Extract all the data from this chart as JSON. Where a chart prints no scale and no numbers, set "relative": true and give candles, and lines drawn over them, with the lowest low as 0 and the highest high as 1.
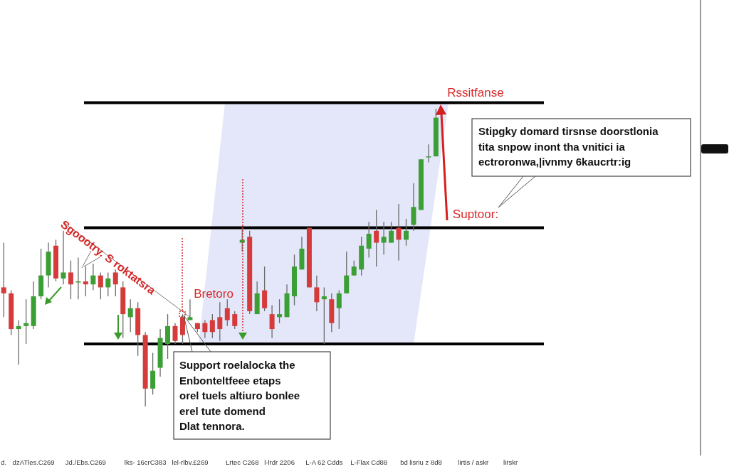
{
  "chart_data": {
    "type": "candlestick",
    "relative": true,
    "categories": [
      "d.",
      null,
      null,
      null,
      "dzATles.C269",
      null,
      null,
      null,
      null,
      null,
      null,
      "Jd./Ebs.C269",
      null,
      null,
      null,
      null,
      null,
      null,
      null,
      "lks- 16crC383",
      null,
      null,
      null,
      null,
      null,
      "lel-rlbv.£269",
      null,
      null,
      null,
      null,
      null,
      null,
      "Lrtec C268",
      null,
      null,
      null,
      null,
      "l-lrdr 2206",
      null,
      null,
      null,
      null,
      null,
      "L-A 62 Cdds",
      null,
      null,
      null,
      null,
      null,
      "L-Flax Cd88",
      null,
      null,
      null,
      null,
      null,
      null,
      "bd lisriu z 8d8",
      null,
      null,
      null,
      null,
      null,
      null,
      "lirtis / askr",
      null,
      null,
      null,
      null,
      "lirskr",
      null,
      null,
      null,
      null,
      null,
      null,
      null,
      null,
      null,
      null,
      null,
      null,
      null,
      null,
      null,
      null,
      null,
      null,
      null,
      null,
      null,
      null,
      null,
      null,
      null
    ],
    "ohlc": [
      [
        0.4,
        0.55,
        0.3,
        0.38
      ],
      [
        0.38,
        0.39,
        0.24,
        0.26
      ],
      [
        0.26,
        0.29,
        0.14,
        0.27
      ],
      [
        0.27,
        0.36,
        0.21,
        0.28
      ],
      [
        0.27,
        0.42,
        0.26,
        0.37
      ],
      [
        0.37,
        0.53,
        0.36,
        0.44
      ],
      [
        0.44,
        0.55,
        0.4,
        0.52
      ],
      [
        0.54,
        0.56,
        0.42,
        0.43
      ],
      [
        0.43,
        0.59,
        0.41,
        0.45
      ],
      [
        0.45,
        0.49,
        0.36,
        0.41
      ],
      [
        0.42,
        0.5,
        0.36,
        0.42
      ],
      [
        0.42,
        0.47,
        0.37,
        0.41
      ],
      [
        0.41,
        0.48,
        0.39,
        0.44
      ],
      [
        0.44,
        0.45,
        0.36,
        0.4
      ],
      [
        0.4,
        0.45,
        0.37,
        0.43
      ],
      [
        0.45,
        0.46,
        0.37,
        0.41
      ],
      [
        0.4,
        0.42,
        0.23,
        0.31
      ],
      [
        0.3,
        0.36,
        0.25,
        0.33
      ],
      [
        0.33,
        0.35,
        0.17,
        0.24
      ],
      [
        0.24,
        0.25,
        0.0,
        0.06
      ],
      [
        0.06,
        0.18,
        0.04,
        0.12
      ],
      [
        0.13,
        0.26,
        0.1,
        0.23
      ],
      [
        0.21,
        0.31,
        0.16,
        0.27
      ],
      [
        0.27,
        0.28,
        0.21,
        0.22
      ],
      [
        0.3,
        0.31,
        0.21,
        0.24
      ],
      [
        0.29,
        0.36,
        0.29,
        0.3
      ],
      [
        0.28,
        0.28,
        0.25,
        0.26
      ],
      [
        0.28,
        0.29,
        0.23,
        0.25
      ],
      [
        0.29,
        0.31,
        0.23,
        0.25
      ],
      [
        0.3,
        0.35,
        0.22,
        0.26
      ],
      [
        0.33,
        0.36,
        0.27,
        0.29
      ],
      [
        0.31,
        0.32,
        0.26,
        0.27
      ],
      [
        0.55,
        0.6,
        0.52,
        0.56
      ],
      [
        0.57,
        0.59,
        0.31,
        0.32
      ],
      [
        0.31,
        0.42,
        0.31,
        0.38
      ],
      [
        0.39,
        0.47,
        0.32,
        0.33
      ],
      [
        0.31,
        0.34,
        0.23,
        0.26
      ],
      [
        0.3,
        0.36,
        0.28,
        0.31
      ],
      [
        0.3,
        0.41,
        0.3,
        0.38
      ],
      [
        0.37,
        0.51,
        0.34,
        0.47
      ],
      [
        0.46,
        0.57,
        0.46,
        0.53
      ],
      [
        0.6,
        0.6,
        0.4,
        0.4
      ],
      [
        0.4,
        0.44,
        0.32,
        0.35
      ],
      [
        0.36,
        0.4,
        0.21,
        0.37
      ],
      [
        0.36,
        0.38,
        0.25,
        0.28
      ],
      [
        0.33,
        0.39,
        0.26,
        0.38
      ],
      [
        0.38,
        0.52,
        0.38,
        0.44
      ],
      [
        0.44,
        0.49,
        0.44,
        0.47
      ],
      [
        0.46,
        0.57,
        0.44,
        0.54
      ],
      [
        0.53,
        0.62,
        0.5,
        0.58
      ],
      [
        0.59,
        0.66,
        0.47,
        0.55
      ],
      [
        0.55,
        0.62,
        0.51,
        0.57
      ],
      [
        0.55,
        0.62,
        0.55,
        0.59
      ],
      [
        0.6,
        0.68,
        0.49,
        0.56
      ],
      [
        0.56,
        0.63,
        0.54,
        0.59
      ],
      [
        0.61,
        0.75,
        0.59,
        0.67
      ],
      [
        0.66,
        0.83,
        0.66,
        0.83
      ],
      [
        0.84,
        0.88,
        0.82,
        0.84
      ],
      [
        0.84,
        1.0,
        0.84,
        0.97
      ],
      null,
      null,
      null,
      null,
      null,
      null,
      null,
      null,
      null,
      null,
      null,
      null,
      null,
      null,
      null,
      null,
      null,
      null,
      null,
      null,
      null,
      null,
      null,
      null,
      null,
      null,
      null,
      null,
      null,
      null,
      null,
      null,
      null,
      null,
      null
    ],
    "colors": [
      "#d63b3b",
      "#d63b3b",
      "#3c9f36",
      "#3c9f36",
      "#3c9f36",
      "#3c9f36",
      "#3c9f36",
      "#d63b3b",
      "#3c9f36",
      "#d63b3b",
      "#3c9f36",
      "#d63b3b",
      "#3c9f36",
      "#d63b3b",
      "#3c9f36",
      "#d63b3b",
      "#d63b3b",
      "#3c9f36",
      "#d63b3b",
      "#d63b3b",
      "#3c9f36",
      "#3c9f36",
      "#3c9f36",
      "#d63b3b",
      "#d63b3b",
      "#3c9f36",
      "#d63b3b",
      "#d63b3b",
      "#d63b3b",
      "#d63b3b",
      "#d63b3b",
      "#d63b3b",
      "#3c9f36",
      "#d63b3b",
      "#3c9f36",
      "#d63b3b",
      "#d63b3b",
      "#3c9f36",
      "#3c9f36",
      "#3c9f36",
      "#3c9f36",
      "#d63b3b",
      "#d63b3b",
      "#3c9f36",
      "#d63b3b",
      "#3c9f36",
      "#3c9f36",
      "#3c9f36",
      "#3c9f36",
      "#3c9f36",
      "#d63b3b",
      "#3c9f36",
      "#3c9f36",
      "#d63b3b",
      "#3c9f36",
      "#3c9f36",
      "#3c9f36",
      "#3c9f36",
      "#3c9f36",
      null,
      null,
      null,
      null,
      null,
      null,
      null,
      null,
      null,
      null,
      null,
      null,
      null,
      null,
      null,
      null,
      null,
      null,
      null,
      null,
      null,
      null,
      null,
      null,
      null,
      null,
      null,
      null,
      null,
      null,
      null,
      null,
      null,
      null,
      null
    ],
    "ref_lines": [
      {
        "axis": "y",
        "value": 1.02,
        "label": "Rssitfanse",
        "color": "#000000"
      },
      {
        "axis": "y",
        "value": 0.6,
        "label": "Suptoor:",
        "color": "#000000"
      },
      {
        "axis": "y",
        "value": 0.21,
        "color": "#000000"
      }
    ],
    "annotations": [
      "Bretoro",
      {
        "text": "Sgoootry. S roktatsra",
        "x": "lel-rlbv.£269",
        "y": 0.3
      },
      "Support roelalocka the\nEnbonteltfeee etaps\norel tuels altiuro bonlee\nerel tute domend\nDlat tennora.",
      "Stipgky domard tirsnse doorstlonia\ntita snpow inont tha vnitici ia\nectroronwa,|ivnmy 6kaucrtr:ig"
    ]
  }
}
